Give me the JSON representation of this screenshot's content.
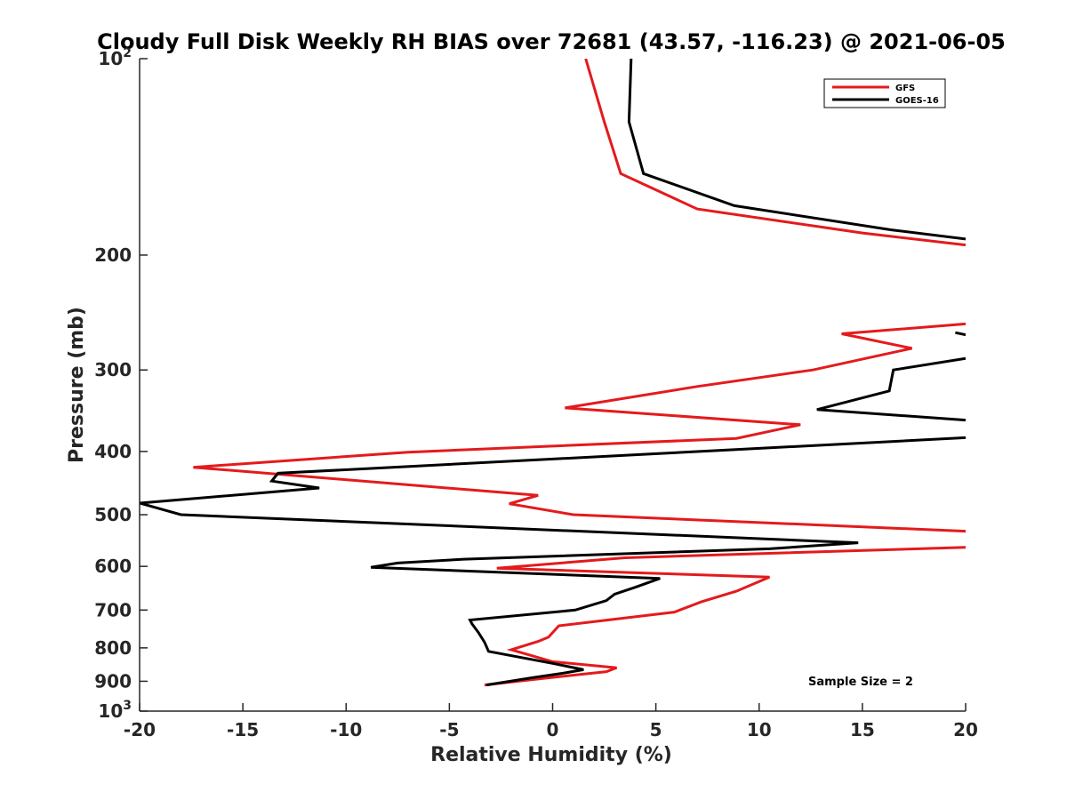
{
  "chart_data": {
    "type": "line",
    "title": "Cloudy Full Disk Weekly RH BIAS over 72681 (43.57, -116.23) @ 2021-06-05",
    "xlabel": "Relative Humidity (%)",
    "ylabel": "Pressure (mb)",
    "xlim": [
      -20,
      20
    ],
    "ylim": [
      100,
      1000
    ],
    "yscale": "log",
    "y_reversed": true,
    "xticks": [
      -20,
      -15,
      -10,
      -5,
      0,
      5,
      10,
      15,
      20
    ],
    "xtick_labels": [
      "-20",
      "-15",
      "-10",
      "-5",
      "0",
      "5",
      "10",
      "15",
      "20"
    ],
    "yticks": [
      {
        "value": 100,
        "base": "10",
        "exp": "2"
      },
      {
        "value": 200,
        "label": "200"
      },
      {
        "value": 300,
        "label": "300"
      },
      {
        "value": 400,
        "label": "400"
      },
      {
        "value": 500,
        "label": "500"
      },
      {
        "value": 600,
        "label": "600"
      },
      {
        "value": 700,
        "label": "700"
      },
      {
        "value": 800,
        "label": "800"
      },
      {
        "value": 900,
        "label": "900"
      },
      {
        "value": 1000,
        "base": "10",
        "exp": "3"
      }
    ],
    "grid": false,
    "legend_position": "top-right",
    "annotation": "Sample Size = 2",
    "series": [
      {
        "name": "GFS",
        "color": "#e41a1c",
        "points": [
          [
            1.6,
            100
          ],
          [
            2.5,
            125
          ],
          [
            3.3,
            150
          ],
          [
            7.0,
            170
          ],
          [
            15.0,
            185
          ],
          [
            20.0,
            193
          ],
          [
            null,
            null
          ],
          [
            20.0,
            255
          ],
          [
            14.0,
            264
          ],
          [
            17.4,
            278
          ],
          [
            12.6,
            300
          ],
          [
            7.0,
            318
          ],
          [
            0.6,
            343
          ],
          [
            12.0,
            364
          ],
          [
            8.9,
            382
          ],
          [
            -7.0,
            401
          ],
          [
            -17.4,
            423
          ],
          [
            -0.7,
            467
          ],
          [
            -2.1,
            481
          ],
          [
            1.0,
            500
          ],
          [
            20.0,
            530
          ],
          [
            null,
            null
          ],
          [
            20.0,
            561
          ],
          [
            3.5,
            582
          ],
          [
            -2.7,
            604
          ],
          [
            10.5,
            623
          ],
          [
            8.9,
            655
          ],
          [
            7.2,
            680
          ],
          [
            5.9,
            705
          ],
          [
            0.3,
            740
          ],
          [
            -0.2,
            770
          ],
          [
            -0.7,
            782
          ],
          [
            -2.0,
            805
          ],
          [
            0.0,
            840
          ],
          [
            3.1,
            858
          ],
          [
            2.6,
            870
          ],
          [
            -1.0,
            895
          ],
          [
            -3.3,
            912
          ]
        ]
      },
      {
        "name": "GOES-16",
        "color": "#000000",
        "points": [
          [
            3.8,
            100
          ],
          [
            3.7,
            125
          ],
          [
            4.4,
            150
          ],
          [
            8.8,
            168
          ],
          [
            16.4,
            183
          ],
          [
            20.0,
            189
          ],
          [
            null,
            null
          ],
          [
            19.5,
            263
          ],
          [
            20.0,
            265
          ],
          [
            null,
            null
          ],
          [
            20.0,
            288
          ],
          [
            16.5,
            300
          ],
          [
            16.3,
            323
          ],
          [
            12.8,
            345
          ],
          [
            20.0,
            358
          ],
          [
            null,
            null
          ],
          [
            20.0,
            381
          ],
          [
            -13.3,
            432
          ],
          [
            -13.6,
            444
          ],
          [
            -11.3,
            455
          ],
          [
            -20.0,
            480
          ],
          [
            -18.0,
            500
          ],
          [
            14.8,
            552
          ],
          [
            10.5,
            564
          ],
          [
            -4.3,
            585
          ],
          [
            -7.5,
            593
          ],
          [
            -8.8,
            602
          ],
          [
            5.2,
            626
          ],
          [
            4.0,
            646
          ],
          [
            3.0,
            662
          ],
          [
            2.6,
            677
          ],
          [
            1.1,
            700
          ],
          [
            -4.0,
            725
          ],
          [
            -3.9,
            735
          ],
          [
            -3.6,
            757
          ],
          [
            -3.3,
            784
          ],
          [
            -3.1,
            810
          ],
          [
            0.0,
            845
          ],
          [
            1.5,
            864
          ],
          [
            0.5,
            875
          ],
          [
            -0.9,
            888
          ],
          [
            -3.2,
            912
          ]
        ]
      }
    ]
  }
}
